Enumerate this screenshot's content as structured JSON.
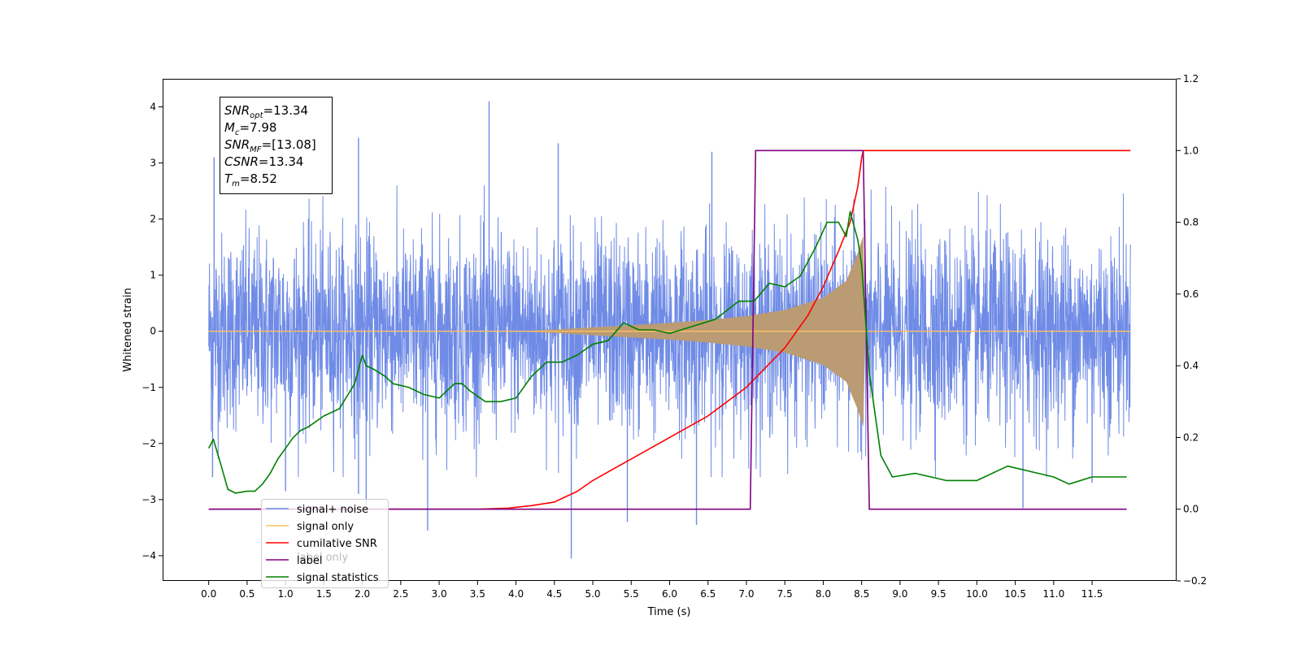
{
  "chart_data": {
    "type": "line",
    "xlabel": "Time (s)",
    "ylabel": "Whitened strain",
    "xlim": [
      -0.6,
      12.6
    ],
    "ylim": [
      -4.45,
      4.5
    ],
    "y2lim": [
      -0.2,
      1.2
    ],
    "x_ticks": [
      "0.0",
      "0.5",
      "1.0",
      "1.5",
      "2.0",
      "2.5",
      "3.0",
      "3.5",
      "4.0",
      "4.5",
      "5.0",
      "5.5",
      "6.0",
      "6.5",
      "7.0",
      "7.5",
      "8.0",
      "8.5",
      "9.0",
      "9.5",
      "10.0",
      "10.5",
      "11.0",
      "11.5"
    ],
    "y_ticks": [
      "4",
      "3",
      "2",
      "1",
      "0",
      "−1",
      "−2",
      "−3",
      "−4"
    ],
    "y2_ticks": [
      "1.2",
      "1.0",
      "0.8",
      "0.6",
      "0.4",
      "0.2",
      "0.0",
      "−0.2"
    ],
    "annotation": {
      "lines": [
        {
          "main": "SNR",
          "sub": "opt",
          "value": "=13.34"
        },
        {
          "main": "M",
          "sub": "c",
          "value": "=7.98"
        },
        {
          "main": "SNR",
          "sub": "MF",
          "value": "=[13.08]"
        },
        {
          "main": "CSNR",
          "sub": "",
          "value": "=13.34"
        },
        {
          "main": "T",
          "sub": "m",
          "value": "=8.52"
        }
      ]
    },
    "legend": {
      "placement": "lower-left",
      "entries": [
        {
          "label": "signal+ noise",
          "color": "#6f8be6"
        },
        {
          "label": "signal only",
          "color": "#ffc060"
        },
        {
          "label": "cumilative SNR",
          "color": "#ff0000"
        },
        {
          "label": "label",
          "color": "#800080"
        },
        {
          "label": "signal statistics",
          "color": "#008000"
        }
      ],
      "ghost_text": "label only"
    },
    "series": [
      {
        "name": "signal+ noise",
        "axis": "left",
        "color": "#6f8be6",
        "x_range": [
          0.0,
          12.0
        ],
        "typical_amplitude": 1.4,
        "spikes": [
          {
            "x": 0.07,
            "y": 3.1
          },
          {
            "x": 0.05,
            "y": -2.6
          },
          {
            "x": 1.0,
            "y": -2.85
          },
          {
            "x": 1.95,
            "y": 3.45
          },
          {
            "x": 1.95,
            "y": -2.9
          },
          {
            "x": 2.05,
            "y": -3.1
          },
          {
            "x": 2.85,
            "y": -3.55
          },
          {
            "x": 3.65,
            "y": 4.1
          },
          {
            "x": 4.55,
            "y": 3.35
          },
          {
            "x": 4.72,
            "y": -4.05
          },
          {
            "x": 5.45,
            "y": -3.4
          },
          {
            "x": 6.35,
            "y": -3.45
          },
          {
            "x": 6.55,
            "y": 3.2
          },
          {
            "x": 10.6,
            "y": -3.15
          },
          {
            "x": 11.5,
            "y": -2.7
          }
        ]
      },
      {
        "name": "signal only",
        "axis": "left",
        "color": "#ffc060",
        "x_range": [
          0.0,
          12.0
        ],
        "merger_time": 8.52,
        "envelope": {
          "x": [
            0.0,
            4.0,
            4.5,
            5.0,
            5.5,
            6.0,
            6.5,
            7.0,
            7.5,
            8.0,
            8.3,
            8.45,
            8.52,
            8.55,
            12.0
          ],
          "y": [
            0.0,
            0.0,
            0.03,
            0.07,
            0.11,
            0.15,
            0.2,
            0.27,
            0.38,
            0.6,
            0.9,
            1.4,
            1.7,
            0.0,
            0.0
          ]
        }
      },
      {
        "name": "cumilative SNR",
        "axis": "right",
        "color": "#ff0000",
        "x": [
          0.0,
          3.5,
          3.9,
          4.2,
          4.5,
          4.8,
          5.0,
          5.5,
          6.0,
          6.5,
          7.0,
          7.5,
          7.8,
          8.0,
          8.2,
          8.35,
          8.45,
          8.5,
          8.52,
          12.0
        ],
        "y": [
          0.0,
          0.0,
          0.003,
          0.01,
          0.02,
          0.05,
          0.08,
          0.14,
          0.2,
          0.26,
          0.34,
          0.45,
          0.54,
          0.62,
          0.72,
          0.8,
          0.9,
          0.98,
          1.0,
          1.0
        ]
      },
      {
        "name": "label",
        "axis": "right",
        "color": "#800080",
        "x": [
          0.0,
          7.05,
          7.12,
          8.52,
          8.6,
          11.95
        ],
        "y": [
          0.0,
          0.0,
          1.0,
          1.0,
          0.0,
          0.0
        ]
      },
      {
        "name": "signal statistics",
        "axis": "right",
        "color": "#008000",
        "x": [
          0.0,
          0.06,
          0.15,
          0.25,
          0.35,
          0.5,
          0.6,
          0.7,
          0.8,
          0.9,
          1.0,
          1.1,
          1.2,
          1.3,
          1.5,
          1.7,
          1.9,
          2.0,
          2.05,
          2.15,
          2.3,
          2.4,
          2.6,
          2.8,
          3.0,
          3.2,
          3.3,
          3.4,
          3.6,
          3.8,
          4.0,
          4.2,
          4.4,
          4.6,
          4.8,
          5.0,
          5.2,
          5.4,
          5.6,
          5.8,
          6.0,
          6.3,
          6.6,
          6.9,
          7.0,
          7.1,
          7.3,
          7.5,
          7.7,
          7.9,
          8.05,
          8.2,
          8.3,
          8.35,
          8.45,
          8.5,
          8.6,
          8.75,
          8.9,
          9.2,
          9.6,
          10.0,
          10.4,
          10.8,
          11.0,
          11.2,
          11.5,
          11.95
        ],
        "y": [
          0.17,
          0.195,
          0.13,
          0.055,
          0.045,
          0.05,
          0.05,
          0.07,
          0.1,
          0.14,
          0.17,
          0.2,
          0.22,
          0.23,
          0.26,
          0.28,
          0.35,
          0.43,
          0.4,
          0.39,
          0.37,
          0.35,
          0.34,
          0.32,
          0.31,
          0.35,
          0.35,
          0.33,
          0.3,
          0.3,
          0.31,
          0.37,
          0.41,
          0.41,
          0.43,
          0.46,
          0.47,
          0.52,
          0.5,
          0.5,
          0.49,
          0.51,
          0.53,
          0.58,
          0.58,
          0.58,
          0.63,
          0.62,
          0.65,
          0.73,
          0.8,
          0.8,
          0.76,
          0.83,
          0.75,
          0.68,
          0.38,
          0.15,
          0.09,
          0.1,
          0.08,
          0.08,
          0.12,
          0.1,
          0.09,
          0.07,
          0.09,
          0.09
        ]
      }
    ]
  }
}
